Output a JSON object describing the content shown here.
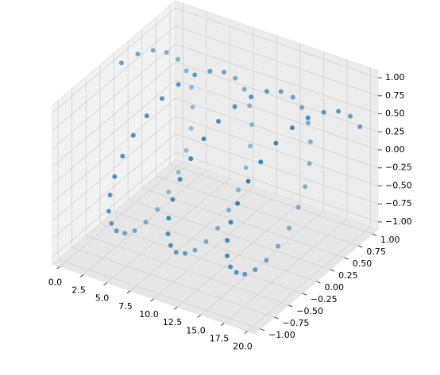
{
  "chart_data": {
    "type": "scatter3d",
    "color": "#1f77b4",
    "x": [
      0,
      0.25,
      0.5,
      0.75,
      1,
      1.25,
      1.5,
      1.75,
      2,
      2.25,
      2.5,
      2.75,
      3,
      3.25,
      3.5,
      3.75,
      4,
      4.25,
      4.5,
      4.75,
      5,
      5.25,
      5.5,
      5.75,
      6,
      6.25,
      6.5,
      6.75,
      7,
      7.25,
      7.5,
      7.75,
      8,
      8.25,
      8.5,
      8.75,
      9,
      9.25,
      9.5,
      9.75,
      10,
      10.25,
      10.5,
      10.75,
      11,
      11.25,
      11.5,
      11.75,
      12,
      12.25,
      12.5,
      12.75,
      13,
      13.25,
      13.5,
      13.75,
      14,
      14.25,
      14.5,
      14.75,
      15,
      15.25,
      15.5,
      15.75,
      16,
      16.25,
      16.5,
      16.75,
      17,
      17.25,
      17.5,
      17.75,
      18,
      18.25,
      18.5,
      18.75,
      19,
      19.25,
      19.5,
      19.75,
      20
    ],
    "y": [
      0,
      0.25,
      0.48,
      0.68,
      0.84,
      0.95,
      1.0,
      0.98,
      0.91,
      0.78,
      0.6,
      0.38,
      0.14,
      -0.11,
      -0.35,
      -0.57,
      -0.76,
      -0.89,
      -0.98,
      -1.0,
      -0.96,
      -0.86,
      -0.71,
      -0.51,
      -0.28,
      -0.03,
      0.22,
      0.45,
      0.66,
      0.82,
      0.94,
      0.99,
      0.99,
      0.92,
      0.8,
      0.62,
      0.41,
      0.17,
      -0.08,
      -0.32,
      -0.54,
      -0.74,
      -0.88,
      -0.97,
      -1.0,
      -0.97,
      -0.88,
      -0.73,
      -0.54,
      -0.32,
      -0.07,
      0.18,
      0.42,
      0.63,
      0.8,
      0.92,
      0.99,
      0.99,
      0.93,
      0.81,
      0.65,
      0.44,
      0.2,
      -0.05,
      -0.29,
      -0.52,
      -0.71,
      -0.86,
      -0.96,
      -1.0,
      -0.98,
      -0.9,
      -0.75,
      -0.57,
      -0.34,
      -0.09,
      0.15,
      0.39,
      0.61,
      0.78,
      0.91
    ],
    "z": [
      1,
      0.97,
      0.88,
      0.73,
      0.54,
      0.32,
      0.07,
      -0.18,
      -0.42,
      -0.63,
      -0.8,
      -0.92,
      -0.99,
      -0.99,
      -0.94,
      -0.82,
      -0.65,
      -0.45,
      -0.21,
      0.04,
      0.28,
      0.51,
      0.71,
      0.86,
      0.96,
      1.0,
      0.98,
      0.89,
      0.75,
      0.57,
      0.35,
      0.1,
      -0.15,
      -0.39,
      -0.6,
      -0.78,
      -0.91,
      -0.99,
      -1.0,
      -0.95,
      -0.84,
      -0.68,
      -0.48,
      -0.25,
      0.0,
      0.25,
      0.48,
      0.68,
      0.84,
      0.95,
      1.0,
      0.98,
      0.91,
      0.78,
      0.6,
      0.39,
      0.14,
      -0.11,
      -0.36,
      -0.59,
      -0.76,
      -0.9,
      -0.98,
      -1.0,
      -0.96,
      -0.86,
      -0.7,
      -0.51,
      -0.28,
      -0.03,
      0.22,
      0.44,
      0.66,
      0.82,
      0.94,
      1.0,
      0.99,
      0.92,
      0.8,
      0.63,
      0.41
    ],
    "xlim": [
      -0.8,
      20.8
    ],
    "ylim": [
      -1.1,
      1.1
    ],
    "zlim": [
      -1.1,
      1.1
    ],
    "xticks": [
      {
        "value": 0,
        "label": "0.0"
      },
      2.5,
      {
        "value": 5,
        "label": "5.0"
      },
      7.5,
      {
        "value": 10,
        "label": "10.0"
      },
      12.5,
      {
        "value": 15,
        "label": "15.0"
      },
      17.5,
      {
        "value": 20,
        "label": "20.0"
      }
    ],
    "yticks": [
      {
        "value": -1,
        "label": "−1.00"
      },
      {
        "value": -0.75,
        "label": "−0.75"
      },
      {
        "value": -0.5,
        "label": "−0.50"
      },
      {
        "value": -0.25,
        "label": "−0.25"
      },
      {
        "value": 0,
        "label": "0.00"
      },
      {
        "value": 0.25,
        "label": "0.25"
      },
      {
        "value": 0.5,
        "label": "0.50"
      },
      {
        "value": 0.75,
        "label": "0.75"
      },
      {
        "value": 1,
        "label": "1.00"
      }
    ],
    "zticks": [
      {
        "value": -1,
        "label": "−1.00"
      },
      {
        "value": -0.75,
        "label": "−0.75"
      },
      {
        "value": -0.5,
        "label": "−0.50"
      },
      {
        "value": -0.25,
        "label": "−0.25"
      },
      {
        "value": 0,
        "label": "0.00"
      },
      {
        "value": 0.25,
        "label": "0.25"
      },
      {
        "value": 0.5,
        "label": "0.50"
      },
      {
        "value": 0.75,
        "label": "0.75"
      },
      {
        "value": 1,
        "label": "1.00"
      }
    ],
    "grid": true
  }
}
